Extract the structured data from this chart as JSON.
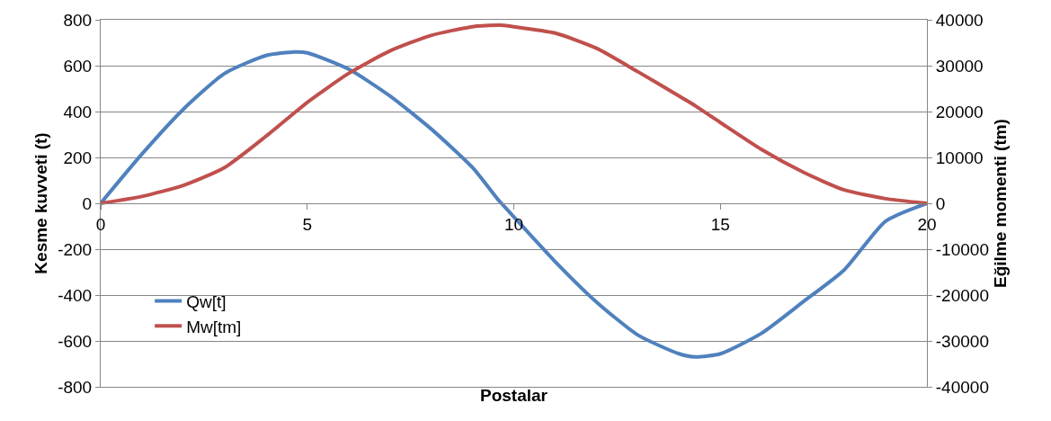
{
  "chart_data": {
    "type": "line",
    "xlabel": "Postalar",
    "ylabel": "Kesme kuvveti (t)",
    "y2label": "Eğilme momenti (tm)",
    "x": [
      0,
      1,
      2,
      3,
      4,
      4.7,
      5,
      6,
      7,
      8,
      9,
      9.6,
      9.7,
      10,
      11,
      12,
      13,
      14,
      14.4,
      15,
      16,
      17,
      18,
      19,
      20
    ],
    "series": [
      {
        "name": "Qw[t]",
        "color": "#4f81bd",
        "values": [
          0,
          215,
          410,
          566,
          644,
          660,
          656,
          585,
          468,
          324,
          156,
          20,
          0,
          -59,
          -254,
          -430,
          -574,
          -656,
          -670,
          -656,
          -566,
          -430,
          -290,
          -78,
          0
        ]
      },
      {
        "name": "Mw[tm]",
        "color": "#c0504d",
        "axis": "y2",
        "values": [
          0,
          1500,
          3900,
          7800,
          14600,
          19800,
          22000,
          28300,
          33200,
          36600,
          38500,
          38800,
          38800,
          38500,
          37100,
          33800,
          28700,
          23400,
          21200,
          17600,
          11700,
          6800,
          2900,
          1000,
          0
        ]
      }
    ],
    "xlim": [
      0,
      20
    ],
    "xticks": [
      0,
      5,
      10,
      15,
      20
    ],
    "ylim": [
      -800,
      800
    ],
    "yticks": [
      -800,
      -600,
      -400,
      -200,
      0,
      200,
      400,
      600,
      800
    ],
    "y2lim": [
      -40000,
      40000
    ],
    "y2ticks": [
      -40000,
      -30000,
      -20000,
      -10000,
      0,
      10000,
      20000,
      30000,
      40000
    ],
    "grid": "y",
    "legend": "bottom left",
    "marker": "none",
    "line_style": "solid"
  }
}
